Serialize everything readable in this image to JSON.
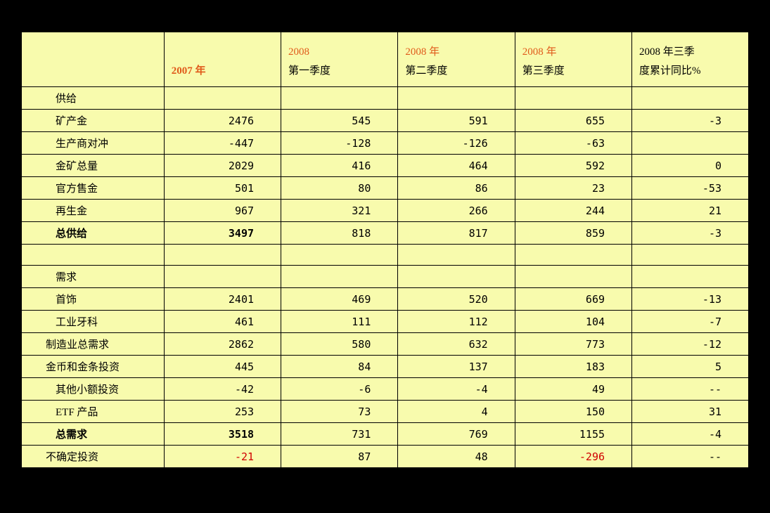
{
  "table": {
    "background_color": "#f8fbad",
    "border_color": "#000000",
    "page_background": "#000000",
    "orange_color": "#e05a1a",
    "red_color": "#d00000",
    "fontsize": 15,
    "headers": [
      {
        "text": "",
        "style": "normal"
      },
      {
        "text": "2007 年",
        "style": "bold-orange"
      },
      {
        "text_line1": "2008",
        "text_line2": "第一季度",
        "style": "orange-black"
      },
      {
        "text_line1": "2008 年",
        "text_line2": "第二季度",
        "style": "orange-black"
      },
      {
        "text_line1": "2008 年",
        "text_line2": "第三季度",
        "style": "orange-black"
      },
      {
        "text_line1": "2008 年三季",
        "text_line2": "度累计同比%",
        "style": "black"
      }
    ],
    "rows": [
      {
        "type": "section",
        "label": "供给"
      },
      {
        "type": "data",
        "label": "矿产金",
        "values": [
          "2476",
          "545",
          "591",
          "655",
          "-3"
        ]
      },
      {
        "type": "data",
        "label": "生产商对冲",
        "values": [
          "-447",
          "-128",
          "-126",
          "-63",
          ""
        ]
      },
      {
        "type": "data",
        "label": "金矿总量",
        "values": [
          "2029",
          "416",
          "464",
          "592",
          "0"
        ]
      },
      {
        "type": "data",
        "label": "官方售金",
        "values": [
          "501",
          "80",
          "86",
          "23",
          "-53"
        ]
      },
      {
        "type": "data",
        "label": "再生金",
        "values": [
          "967",
          "321",
          "266",
          "244",
          "21"
        ]
      },
      {
        "type": "data-bold",
        "label": "总供给",
        "values": [
          "3497",
          "818",
          "817",
          "859",
          "-3"
        ],
        "bold_cols": [
          0
        ]
      },
      {
        "type": "empty"
      },
      {
        "type": "section",
        "label": "需求"
      },
      {
        "type": "data",
        "label": "首饰",
        "values": [
          "2401",
          "469",
          "520",
          "669",
          "-13"
        ]
      },
      {
        "type": "data",
        "label": "工业牙科",
        "values": [
          "461",
          "111",
          "112",
          "104",
          "-7"
        ]
      },
      {
        "type": "data",
        "label": "制造业总需求",
        "label_indent": "less",
        "values": [
          "2862",
          "580",
          "632",
          "773",
          "-12"
        ]
      },
      {
        "type": "data",
        "label": "金币和金条投资",
        "label_indent": "less",
        "values": [
          "445",
          "84",
          "137",
          "183",
          "5"
        ]
      },
      {
        "type": "data",
        "label": "其他小额投资",
        "values": [
          "-42",
          "-6",
          "-4",
          "49",
          "--"
        ]
      },
      {
        "type": "data",
        "label": "ETF 产品",
        "values": [
          "253",
          "73",
          "4",
          "150",
          "31"
        ]
      },
      {
        "type": "data-bold",
        "label": "总需求",
        "values": [
          "3518",
          "731",
          "769",
          "1155",
          "-4"
        ],
        "bold_cols": [
          0
        ]
      },
      {
        "type": "data",
        "label": "不确定投资",
        "label_indent": "less",
        "values": [
          "-21",
          "87",
          "48",
          "-296",
          "--"
        ],
        "red_cols": [
          0,
          3
        ]
      }
    ]
  }
}
